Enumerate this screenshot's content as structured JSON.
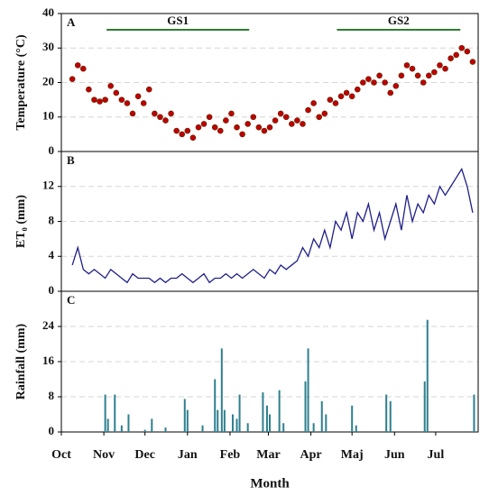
{
  "chart_data": [
    {
      "type": "scatter",
      "panel": "A",
      "y_label": "Temperature (°C)",
      "color": "#c00000",
      "xlim": [
        0,
        304
      ],
      "ylim": [
        0,
        40
      ],
      "yticks": [
        0,
        10,
        20,
        30,
        40
      ],
      "grid": true,
      "annotations": [
        {
          "label": "GS1",
          "start": 33,
          "end": 137
        },
        {
          "label": "GS2",
          "start": 201,
          "end": 291
        }
      ],
      "annotation_color": "#2e7d32",
      "x": [
        8,
        12,
        16,
        20,
        24,
        28,
        32,
        36,
        40,
        44,
        48,
        52,
        56,
        60,
        64,
        68,
        72,
        76,
        80,
        84,
        88,
        92,
        96,
        100,
        104,
        108,
        112,
        116,
        120,
        124,
        128,
        132,
        136,
        140,
        144,
        148,
        152,
        156,
        160,
        164,
        168,
        172,
        176,
        180,
        184,
        188,
        192,
        196,
        200,
        204,
        208,
        212,
        216,
        220,
        224,
        228,
        232,
        236,
        240,
        244,
        248,
        252,
        256,
        260,
        264,
        268,
        272,
        276,
        280,
        284,
        288,
        292,
        296,
        300
      ],
      "values": [
        21,
        25,
        24,
        18,
        15,
        14.5,
        15,
        19,
        17,
        15,
        14,
        11,
        16,
        14,
        18,
        11,
        10,
        9,
        11,
        6,
        5,
        6,
        4,
        7,
        8,
        10,
        7,
        6,
        9,
        11,
        7,
        5,
        8,
        10,
        7,
        6,
        7,
        9,
        11,
        10,
        8,
        9,
        8,
        12,
        14,
        10,
        11,
        15,
        14,
        16,
        17,
        16,
        18,
        20,
        21,
        20,
        22,
        20,
        17,
        19,
        22,
        25,
        24,
        22,
        20,
        22,
        23,
        25,
        24,
        27,
        28,
        30,
        29,
        26
      ]
    },
    {
      "type": "line",
      "panel": "B",
      "y_label": "ET₀ (mm)",
      "color": "#1f1f8a",
      "xlim": [
        0,
        304
      ],
      "ylim": [
        0,
        16
      ],
      "yticks": [
        0,
        4,
        8,
        12
      ],
      "grid": true,
      "x": [
        8,
        12,
        16,
        20,
        24,
        28,
        32,
        36,
        40,
        44,
        48,
        52,
        56,
        60,
        64,
        68,
        72,
        76,
        80,
        84,
        88,
        92,
        96,
        100,
        104,
        108,
        112,
        116,
        120,
        124,
        128,
        132,
        136,
        140,
        144,
        148,
        152,
        156,
        160,
        164,
        168,
        172,
        176,
        180,
        184,
        188,
        192,
        196,
        200,
        204,
        208,
        212,
        216,
        220,
        224,
        228,
        232,
        236,
        240,
        244,
        248,
        252,
        256,
        260,
        264,
        268,
        272,
        276,
        280,
        284,
        288,
        292,
        296,
        300
      ],
      "values": [
        3,
        5,
        2.5,
        2,
        2.5,
        2,
        1.5,
        2.5,
        2,
        1.5,
        1,
        2,
        1.5,
        1.5,
        1.5,
        1,
        1.5,
        1,
        1.5,
        1.5,
        2,
        1.5,
        1,
        1.5,
        2,
        1,
        1.5,
        1.5,
        2,
        1.5,
        2,
        1.5,
        2,
        2.5,
        2,
        1.5,
        2.5,
        2,
        3,
        2.5,
        3,
        3.5,
        5,
        4,
        6,
        5,
        7,
        5,
        8,
        7,
        9,
        6,
        9,
        8,
        10,
        7,
        9,
        6,
        8,
        10,
        7,
        11,
        8,
        10,
        9,
        11,
        10,
        12,
        11,
        12,
        13,
        14,
        12,
        9
      ]
    },
    {
      "type": "bar",
      "panel": "C",
      "y_label": "Rainfall (mm)",
      "x_label": "Month",
      "color": "#2e7f8f",
      "xlim": [
        0,
        304
      ],
      "ylim": [
        0,
        32
      ],
      "yticks": [
        0,
        8,
        16,
        24
      ],
      "grid": true,
      "xticks": [
        {
          "value": 0,
          "label": "Oct"
        },
        {
          "value": 31,
          "label": "Nov"
        },
        {
          "value": 61,
          "label": "Dec"
        },
        {
          "value": 92,
          "label": "Jan"
        },
        {
          "value": 123,
          "label": "Feb"
        },
        {
          "value": 151,
          "label": "Mar"
        },
        {
          "value": 182,
          "label": "Apr"
        },
        {
          "value": 212,
          "label": "Maj"
        },
        {
          "value": 243,
          "label": "Jun"
        },
        {
          "value": 273,
          "label": "Jul"
        }
      ],
      "x": [
        32,
        34,
        39,
        44,
        49,
        61,
        66,
        76,
        90,
        92,
        103,
        112,
        114,
        117,
        119,
        125,
        128,
        130,
        136,
        147,
        150,
        152,
        159,
        162,
        178,
        180,
        184,
        190,
        193,
        212,
        215,
        237,
        240,
        265,
        267,
        301
      ],
      "values": [
        8.5,
        3,
        8.5,
        1.5,
        4,
        0.5,
        3,
        1,
        7.5,
        5,
        1.5,
        12,
        5,
        19,
        5,
        4,
        3,
        8.5,
        2,
        9,
        6,
        4,
        9.5,
        2,
        11.5,
        19,
        2,
        7,
        4,
        6,
        1.5,
        8.5,
        7,
        11.5,
        25.5,
        8.5
      ]
    }
  ]
}
